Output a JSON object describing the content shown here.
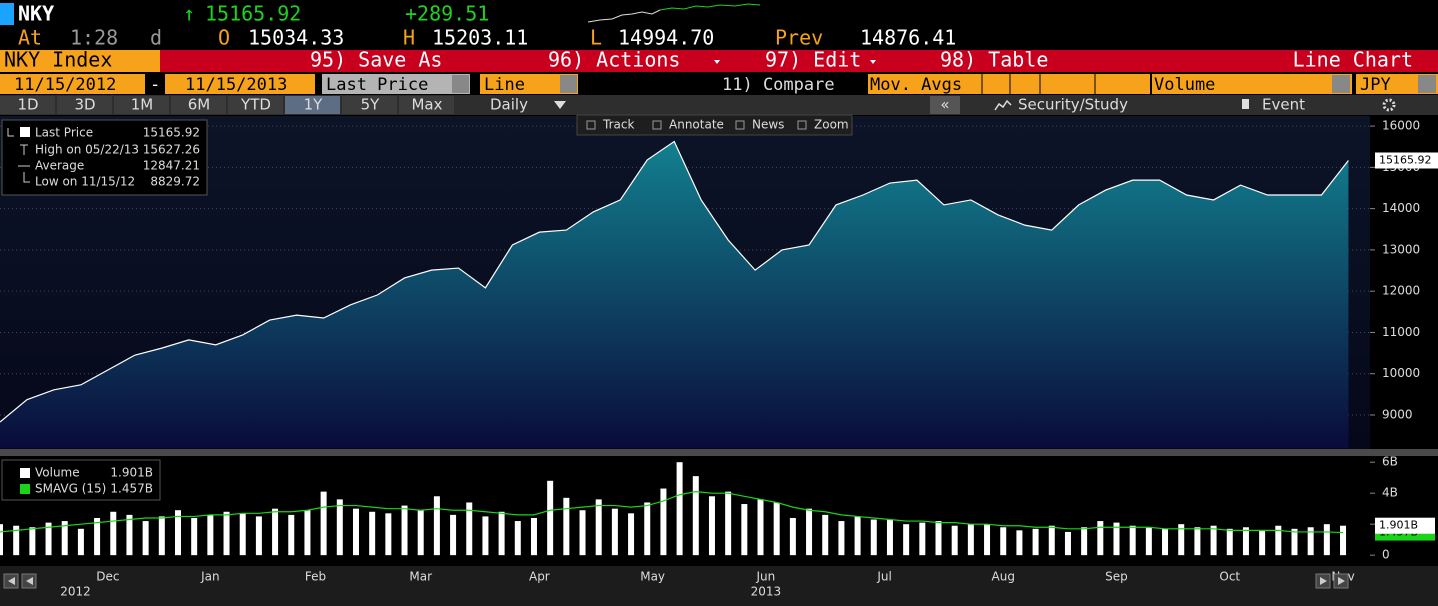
{
  "header": {
    "ticker": "NKY",
    "arrow": "↑",
    "last": "15165.92",
    "change": "+289.51",
    "at_label": "At",
    "time": "1:28",
    "time_suffix": "d",
    "open_label": "O",
    "open": "15034.33",
    "high_label": "H",
    "high": "15203.11",
    "low_label": "L",
    "low": "14994.70",
    "prev_label": "Prev",
    "prev": "14876.41"
  },
  "menu": {
    "security": "NKY Index",
    "items": [
      "95) Save As",
      "96) Actions",
      "97) Edit",
      "98) Table"
    ],
    "chart_kind": "Line Chart"
  },
  "settings": {
    "start": "11/15/2012",
    "dash": "-",
    "end": "11/15/2013",
    "field": "Last Price",
    "style": "Line",
    "compare": "11) Compare",
    "mov": "Mov. Avgs",
    "volume": "Volume",
    "currency": "JPY"
  },
  "periods": [
    "1D",
    "3D",
    "1M",
    "6M",
    "YTD",
    "1Y",
    "5Y",
    "Max"
  ],
  "active_period": "1Y",
  "frequency": "Daily",
  "collapse": "«",
  "security_study": "Security/Study",
  "event": "Event",
  "tools": [
    "Track",
    "Annotate",
    "News",
    "Zoom"
  ],
  "chart_data": [
    {
      "type": "area",
      "x": [
        0,
        5,
        10,
        15,
        20,
        25,
        30,
        35,
        40,
        45,
        50,
        55,
        60,
        65,
        70,
        75,
        80,
        85,
        90,
        95,
        100,
        105,
        110,
        115,
        120,
        125,
        130,
        135,
        140,
        145,
        150,
        155,
        160,
        165,
        170,
        175,
        180,
        185,
        190,
        195,
        200,
        205,
        210,
        215,
        220,
        225,
        230,
        235,
        240,
        245,
        250
      ],
      "series": [
        {
          "name": "Last Price",
          "color": "#ffffff",
          "fill_top": "#12808f",
          "fill_bottom": "#0a0b3a",
          "last_value_label": "15165.92",
          "values": [
            8829.72,
            9370,
            9610,
            9730,
            10090,
            10450,
            10620,
            10820,
            10700,
            10940,
            11300,
            11420,
            11350,
            11670,
            11910,
            12320,
            12510,
            12560,
            12080,
            13120,
            13430,
            13480,
            13920,
            14210,
            15180,
            15627.26,
            14210,
            13240,
            12510,
            13000,
            13120,
            14090,
            14330,
            14620,
            14690,
            14090,
            14210,
            13850,
            13600,
            13480,
            14090,
            14450,
            14690,
            14690,
            14330,
            14210,
            14570,
            14330,
            14330,
            14330,
            15165.92
          ]
        }
      ],
      "stats": [
        {
          "label": "High on 05/22/13",
          "value": "15627.26"
        },
        {
          "label": "Average",
          "value": "12847.21"
        },
        {
          "label": "Low on 11/15/12",
          "value": "8829.72"
        }
      ],
      "xlim": [
        0,
        254
      ],
      "ylim": [
        8200,
        16220
      ],
      "yticks": [
        9000,
        10000,
        11000,
        12000,
        13000,
        14000,
        15000,
        16000
      ],
      "grid": true
    },
    {
      "type": "bar",
      "x": [
        0,
        3,
        6,
        9,
        12,
        15,
        18,
        21,
        24,
        27,
        30,
        33,
        36,
        39,
        42,
        45,
        48,
        51,
        54,
        57,
        60,
        63,
        66,
        69,
        72,
        75,
        78,
        81,
        84,
        87,
        90,
        93,
        96,
        99,
        102,
        105,
        108,
        111,
        114,
        117,
        120,
        123,
        126,
        129,
        132,
        135,
        138,
        141,
        144,
        147,
        150,
        153,
        156,
        159,
        162,
        165,
        168,
        171,
        174,
        177,
        180,
        183,
        186,
        189,
        192,
        195,
        198,
        201,
        204,
        207,
        210,
        213,
        216,
        219,
        222,
        225,
        228,
        231,
        234,
        237,
        240,
        243,
        246,
        249
      ],
      "series": [
        {
          "name": "Volume",
          "color": "#ffffff",
          "last_value_label": "1.901B",
          "values": [
            2.0,
            1.9,
            1.8,
            2.1,
            2.2,
            1.7,
            2.4,
            2.8,
            2.6,
            2.2,
            2.5,
            2.9,
            2.4,
            2.6,
            2.8,
            2.7,
            2.5,
            3.0,
            2.6,
            2.9,
            4.1,
            3.6,
            3.0,
            2.8,
            2.7,
            3.2,
            2.9,
            3.8,
            2.6,
            3.4,
            2.5,
            2.8,
            2.2,
            2.4,
            4.8,
            3.7,
            2.9,
            3.6,
            3.0,
            2.7,
            3.4,
            4.3,
            6.0,
            5.1,
            3.8,
            4.1,
            3.3,
            3.6,
            3.4,
            2.4,
            3.0,
            2.6,
            2.2,
            2.5,
            2.3,
            2.3,
            2.0,
            2.1,
            2.2,
            1.9,
            2.0,
            2.0,
            1.8,
            1.6,
            1.7,
            1.9,
            1.5,
            1.8,
            2.2,
            2.1,
            1.9,
            1.8,
            1.7,
            2.0,
            1.8,
            1.9,
            1.7,
            1.8,
            1.6,
            1.9,
            1.7,
            1.8,
            2.0,
            1.901
          ]
        },
        {
          "name": "SMAVG (15)",
          "color": "#19d419",
          "type": "line",
          "last_value_label": "1.457B",
          "values": [
            1.5,
            1.6,
            1.7,
            1.8,
            1.9,
            2.0,
            2.1,
            2.2,
            2.3,
            2.4,
            2.4,
            2.5,
            2.5,
            2.6,
            2.6,
            2.7,
            2.7,
            2.8,
            2.8,
            2.9,
            3.1,
            3.2,
            3.2,
            3.1,
            3.0,
            3.0,
            2.9,
            3.0,
            2.9,
            2.9,
            2.8,
            2.7,
            2.6,
            2.6,
            2.9,
            3.0,
            3.1,
            3.2,
            3.2,
            3.1,
            3.2,
            3.5,
            3.9,
            4.1,
            4.0,
            4.0,
            3.8,
            3.6,
            3.4,
            3.1,
            2.9,
            2.8,
            2.6,
            2.5,
            2.4,
            2.3,
            2.2,
            2.2,
            2.1,
            2.1,
            2.0,
            2.0,
            1.9,
            1.9,
            1.8,
            1.8,
            1.7,
            1.7,
            1.8,
            1.8,
            1.8,
            1.8,
            1.7,
            1.7,
            1.7,
            1.7,
            1.6,
            1.6,
            1.6,
            1.6,
            1.5,
            1.5,
            1.5,
            1.457
          ]
        }
      ],
      "xlim": [
        0,
        254
      ],
      "ylim": [
        -0.7,
        6.4
      ],
      "yticks": [
        0,
        {
          "value": 2,
          "label": "2B"
        },
        {
          "value": 4,
          "label": "4B"
        },
        {
          "value": 6,
          "label": "6B"
        }
      ],
      "xticks": [
        {
          "value": 20,
          "label": "Dec"
        },
        {
          "value": 39,
          "label": "Jan"
        },
        {
          "value": 58.5,
          "label": "Feb"
        },
        {
          "value": 78,
          "label": "Mar"
        },
        {
          "value": 100,
          "label": "Apr"
        },
        {
          "value": 121,
          "label": "May"
        },
        {
          "value": 142,
          "label": "Jun"
        },
        {
          "value": 164,
          "label": "Jul"
        },
        {
          "value": 186,
          "label": "Aug"
        },
        {
          "value": 207,
          "label": "Sep"
        },
        {
          "value": 228,
          "label": "Oct"
        },
        {
          "value": 249,
          "label": "Nov"
        }
      ],
      "year_labels": [
        {
          "value": 14,
          "label": "2012"
        },
        {
          "value": 142,
          "label": "2013"
        }
      ],
      "grid": false
    }
  ]
}
